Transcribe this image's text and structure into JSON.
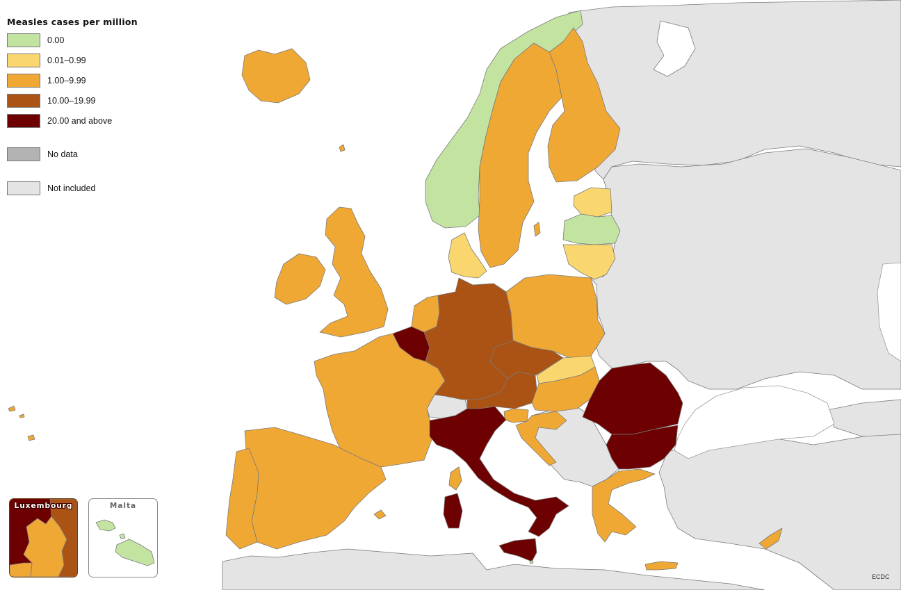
{
  "legend": {
    "title": "Measles cases per million",
    "items": [
      {
        "label": "0.00",
        "color": "#c3e4a1"
      },
      {
        "label": "0.01–0.99",
        "color": "#f9d66e"
      },
      {
        "label": "1.00–9.99",
        "color": "#f0a835"
      },
      {
        "label": "10.00–19.99",
        "color": "#ab5314"
      },
      {
        "label": "20.00 and above",
        "color": "#6d0000"
      }
    ],
    "no_data": {
      "label": "No data",
      "color": "#b3b3b3"
    },
    "not_included": {
      "label": "Not included",
      "color": "#e4e4e4"
    }
  },
  "insets": {
    "luxembourg": {
      "title": "Luxembourg"
    },
    "malta": {
      "title": "Malta"
    }
  },
  "credit": "ECDC"
}
